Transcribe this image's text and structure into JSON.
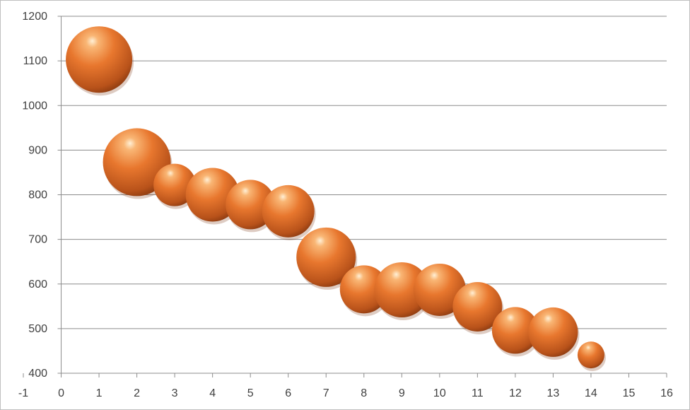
{
  "chart_data": {
    "type": "bubble",
    "title": "",
    "xlabel": "",
    "ylabel": "",
    "xlim": [
      -1,
      16
    ],
    "ylim": [
      400,
      1200
    ],
    "x_ticks": [
      "-1",
      "0",
      "1",
      "2",
      "3",
      "4",
      "5",
      "6",
      "7",
      "8",
      "9",
      "10",
      "11",
      "12",
      "13",
      "14",
      "15",
      "16"
    ],
    "y_ticks": [
      "400",
      "500",
      "600",
      "700",
      "800",
      "900",
      "1000",
      "1100",
      "1200"
    ],
    "grid": "horizontal",
    "legend": "none",
    "bubble_color": "#e8772e",
    "series": [
      {
        "points": [
          {
            "x": 1,
            "y": 1103,
            "size": 47
          },
          {
            "x": 2,
            "y": 873,
            "size": 48
          },
          {
            "x": 3,
            "y": 822,
            "size": 30
          },
          {
            "x": 4,
            "y": 800,
            "size": 38
          },
          {
            "x": 5,
            "y": 778,
            "size": 35
          },
          {
            "x": 6,
            "y": 763,
            "size": 37
          },
          {
            "x": 7,
            "y": 660,
            "size": 42
          },
          {
            "x": 8,
            "y": 588,
            "size": 34
          },
          {
            "x": 9,
            "y": 587,
            "size": 39
          },
          {
            "x": 10,
            "y": 587,
            "size": 37
          },
          {
            "x": 11,
            "y": 549,
            "size": 35
          },
          {
            "x": 12,
            "y": 496,
            "size": 33
          },
          {
            "x": 13,
            "y": 492,
            "size": 35
          },
          {
            "x": 14,
            "y": 441,
            "size": 19
          }
        ]
      }
    ]
  }
}
